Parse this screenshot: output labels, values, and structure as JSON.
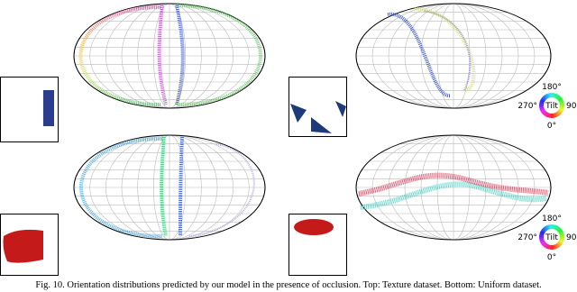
{
  "figure": {
    "wheels": [
      {
        "top": "180°",
        "left": "270°",
        "center": "Tilt",
        "right": "90",
        "bottom": "0°"
      },
      {
        "top": "180°",
        "left": "270°",
        "center": "Tilt",
        "right": "90",
        "bottom": "0°"
      }
    ],
    "caption": "Fig. 10.  Orientation distributions predicted by our model in the presence of occlusion. Top: Texture dataset. Bottom: Uniform dataset."
  }
}
